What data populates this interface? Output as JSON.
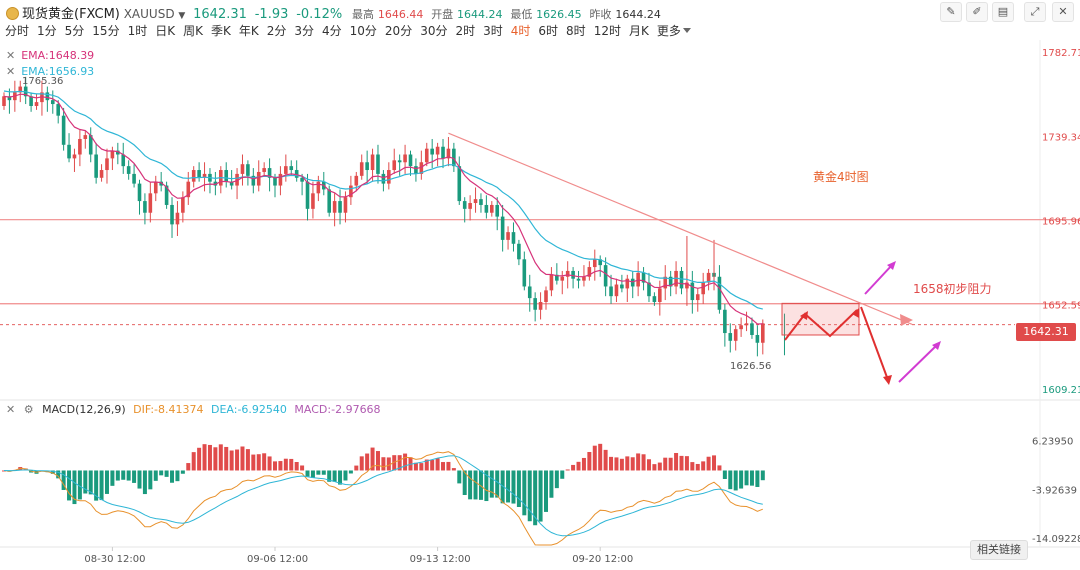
{
  "header": {
    "title": "现货黄金(FXCM)",
    "symbol": "XAUUSD",
    "price": "1642.31",
    "change": "-1.93",
    "change_pct": "-0.12%",
    "high_label": "最高",
    "high": "1646.44",
    "open_label": "开盘",
    "open": "1644.24",
    "low_label": "最低",
    "low": "1626.45",
    "prev_close_label": "昨收",
    "prev_close": "1644.24"
  },
  "intervals": [
    "分时",
    "1分",
    "5分",
    "15分",
    "1时",
    "日K",
    "周K",
    "季K",
    "年K",
    "2分",
    "3分",
    "4分",
    "10分",
    "20分",
    "30分",
    "2时",
    "3时",
    "4时",
    "6时",
    "8时",
    "12时",
    "月K",
    "更多"
  ],
  "active_interval": "4时",
  "legend": {
    "ema1_label": "EMA:1648.39",
    "ema2_label": "EMA:1656.93",
    "hi_marker": "1765.36",
    "lo_marker": "1626.56"
  },
  "colors": {
    "up": "#e04b4b",
    "down": "#1a9a7d",
    "ema_fast": "#d6337a",
    "ema_slow": "#2fb6d6",
    "accent": "#e8612c"
  },
  "annotations": {
    "chart_note": "黄金4时图",
    "resistance_note": "1658初步阻力"
  },
  "macd_legend": {
    "title": "MACD(12,26,9)",
    "dif": "DIF:-8.41374",
    "dea": "DEA:-6.92540",
    "macd": "MACD:-2.97668"
  },
  "related_button": "相关链接",
  "current_price_tag": "1642.31",
  "chart_data": [
    {
      "type": "candlestick",
      "title": "现货黄金 XAUUSD 4时",
      "ylim": [
        1603.5,
        1789
      ],
      "y_ticks": [
        1782.71,
        1739.34,
        1695.96,
        1652.59,
        1609.21
      ],
      "y_tick_labels": [
        "1782.71",
        "1739.34",
        "1695.96",
        "1652.59",
        "1609.21"
      ],
      "x_tick_labels": [
        "08-30 12:00",
        "09-06 12:00",
        "09-13 12:00",
        "09-20 12:00"
      ],
      "x_tick_index": [
        20,
        50,
        80,
        110
      ],
      "horizontal_lines": [
        1696.4,
        1653.1
      ],
      "candles_close": [
        1760,
        1758,
        1762,
        1765,
        1760,
        1755,
        1757,
        1762,
        1758,
        1756,
        1750,
        1735,
        1728,
        1730,
        1738,
        1740,
        1730,
        1718,
        1722,
        1728,
        1732,
        1730,
        1724,
        1720,
        1715,
        1706,
        1700,
        1710,
        1716,
        1714,
        1704,
        1694,
        1700,
        1708,
        1716,
        1722,
        1718,
        1720,
        1716,
        1714,
        1722,
        1716,
        1714,
        1720,
        1725,
        1719,
        1714,
        1721,
        1723,
        1718,
        1714,
        1720,
        1724,
        1722,
        1718,
        1716,
        1702,
        1710,
        1716,
        1712,
        1700,
        1706,
        1700,
        1708,
        1714,
        1719,
        1726,
        1722,
        1730,
        1720,
        1715,
        1722,
        1727,
        1726,
        1730,
        1724,
        1720,
        1726,
        1733,
        1730,
        1734,
        1728,
        1733,
        1724,
        1706,
        1702,
        1705,
        1707,
        1704,
        1700,
        1704,
        1698,
        1686,
        1690,
        1684,
        1676,
        1662,
        1656,
        1650,
        1654,
        1660,
        1668,
        1665,
        1667,
        1670,
        1666,
        1665,
        1667,
        1672,
        1676,
        1673,
        1662,
        1657,
        1663,
        1661,
        1666,
        1662,
        1669,
        1664,
        1657,
        1654,
        1661,
        1667,
        1662,
        1670,
        1661,
        1664,
        1655,
        1658,
        1664,
        1669,
        1667,
        1650,
        1638,
        1634,
        1640,
        1642,
        1643,
        1637,
        1633,
        1643
      ],
      "ema_fast_end": 1648.39,
      "ema_slow_end": 1656.93,
      "trendline": [
        [
          82,
          1741
        ],
        [
          158,
          1652
        ]
      ],
      "projection_path": "rally to 1653 resistance in 1642–1653 box, then drop toward 1608 or break above toward 1670",
      "series": [
        {
          "name": "EMA fast",
          "last": 1648.39
        },
        {
          "name": "EMA slow",
          "last": 1656.93
        }
      ]
    },
    {
      "type": "bar",
      "title": "MACD(12,26,9)",
      "ylim": [
        -15.5,
        10.5
      ],
      "y_ticks": [
        6.2395,
        -3.92639,
        -14.09228
      ],
      "y_tick_labels": [
        "6.23950",
        "-3.92639",
        "-14.09228"
      ],
      "dif_last": -8.41374,
      "dea_last": -6.9254,
      "macd_last": -2.97668
    }
  ]
}
